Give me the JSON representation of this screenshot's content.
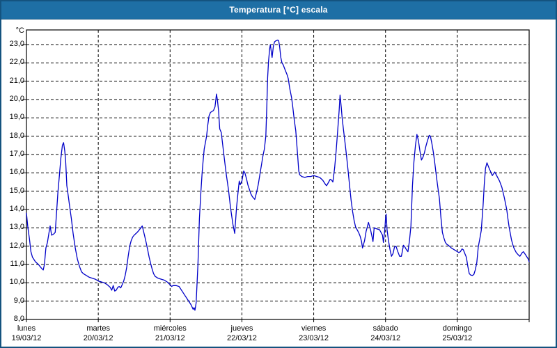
{
  "window": {
    "title": "Temperatura [°C] escala"
  },
  "colors": {
    "titlebar_bg": "#1e6fa5",
    "window_border": "#14537f",
    "line": "#0000c8",
    "grid": "#000000",
    "text": "#000000",
    "plot_bg": "#ffffff"
  },
  "chart_data": {
    "type": "line",
    "title": "Temperatura [°C] escala",
    "unit_label": "°C",
    "ylim": [
      8,
      23.8
    ],
    "y_ticks": [
      {
        "value": 23,
        "label": "23,0"
      },
      {
        "value": 22,
        "label": "22,0"
      },
      {
        "value": 21,
        "label": "21,0"
      },
      {
        "value": 20,
        "label": "20,0"
      },
      {
        "value": 19,
        "label": "19,0"
      },
      {
        "value": 18,
        "label": "18,0"
      },
      {
        "value": 17,
        "label": "17,0"
      },
      {
        "value": 16,
        "label": "16,0"
      },
      {
        "value": 15,
        "label": "15,0"
      },
      {
        "value": 14,
        "label": "14,0"
      },
      {
        "value": 13,
        "label": "13,0"
      },
      {
        "value": 12,
        "label": "12,0"
      },
      {
        "value": 11,
        "label": "11,0"
      },
      {
        "value": 10,
        "label": "10,0"
      },
      {
        "value": 9,
        "label": "9,0"
      },
      {
        "value": 8,
        "label": "8,0"
      }
    ],
    "x_days": [
      {
        "name": "lunes",
        "date": "19/03/12"
      },
      {
        "name": "martes",
        "date": "20/03/12"
      },
      {
        "name": "miércoles",
        "date": "21/03/12"
      },
      {
        "name": "jueves",
        "date": "22/03/12"
      },
      {
        "name": "viernes",
        "date": "23/03/12"
      },
      {
        "name": "sábado",
        "date": "24/03/12"
      },
      {
        "name": "domingo",
        "date": "25/03/12"
      }
    ],
    "x_hours_total": 168,
    "grid": true,
    "points": [
      [
        0,
        13.8
      ],
      [
        0.5,
        13.0
      ],
      [
        1,
        12.4
      ],
      [
        1.5,
        11.7
      ],
      [
        2,
        11.4
      ],
      [
        3,
        11.15
      ],
      [
        4,
        11.0
      ],
      [
        5,
        10.8
      ],
      [
        5.6,
        10.7
      ],
      [
        6,
        11.0
      ],
      [
        6.5,
        11.9
      ],
      [
        7,
        12.2
      ],
      [
        7.5,
        12.7
      ],
      [
        7.9,
        13.1
      ],
      [
        8.4,
        12.6
      ],
      [
        9,
        12.65
      ],
      [
        9.6,
        12.75
      ],
      [
        10,
        13.7
      ],
      [
        10.5,
        14.9
      ],
      [
        11,
        15.85
      ],
      [
        11.5,
        16.8
      ],
      [
        12,
        17.5
      ],
      [
        12.4,
        17.65
      ],
      [
        12.8,
        17.2
      ],
      [
        13.1,
        16.65
      ],
      [
        13.5,
        15.3
      ],
      [
        14,
        14.7
      ],
      [
        14.5,
        14.1
      ],
      [
        15,
        13.5
      ],
      [
        15.6,
        12.7
      ],
      [
        16.3,
        11.9
      ],
      [
        17,
        11.3
      ],
      [
        17.7,
        10.9
      ],
      [
        18.4,
        10.6
      ],
      [
        19,
        10.5
      ],
      [
        20,
        10.4
      ],
      [
        21,
        10.3
      ],
      [
        22,
        10.25
      ],
      [
        23,
        10.2
      ],
      [
        24,
        10.1
      ],
      [
        25,
        10.05
      ],
      [
        26,
        10.0
      ],
      [
        27,
        9.9
      ],
      [
        28,
        9.75
      ],
      [
        28.5,
        9.6
      ],
      [
        29,
        9.85
      ],
      [
        29.5,
        9.55
      ],
      [
        30,
        9.6
      ],
      [
        30.5,
        9.75
      ],
      [
        31,
        9.8
      ],
      [
        31.5,
        9.72
      ],
      [
        32,
        9.9
      ],
      [
        32.5,
        10.1
      ],
      [
        33,
        10.4
      ],
      [
        33.5,
        10.85
      ],
      [
        34,
        11.45
      ],
      [
        34.5,
        12.0
      ],
      [
        35,
        12.3
      ],
      [
        35.5,
        12.5
      ],
      [
        36,
        12.6
      ],
      [
        37,
        12.75
      ],
      [
        37.5,
        12.85
      ],
      [
        38,
        12.95
      ],
      [
        38.7,
        13.1
      ],
      [
        39,
        12.9
      ],
      [
        39.5,
        12.55
      ],
      [
        40,
        12.2
      ],
      [
        40.5,
        11.8
      ],
      [
        41,
        11.4
      ],
      [
        41.5,
        11.05
      ],
      [
        42,
        10.75
      ],
      [
        42.5,
        10.5
      ],
      [
        43,
        10.35
      ],
      [
        44,
        10.25
      ],
      [
        45,
        10.2
      ],
      [
        46,
        10.15
      ],
      [
        47,
        10.05
      ],
      [
        48,
        9.9
      ],
      [
        48.5,
        9.8
      ],
      [
        49,
        9.85
      ],
      [
        50,
        9.85
      ],
      [
        51,
        9.8
      ],
      [
        52,
        9.55
      ],
      [
        53,
        9.3
      ],
      [
        54,
        9.05
      ],
      [
        55,
        8.8
      ],
      [
        55.7,
        8.55
      ],
      [
        56,
        8.65
      ],
      [
        56.3,
        8.5
      ],
      [
        56.7,
        8.9
      ],
      [
        57.3,
        11.0
      ],
      [
        57.8,
        13.5
      ],
      [
        58.3,
        15.0
      ],
      [
        58.7,
        16.0
      ],
      [
        59,
        16.6
      ],
      [
        59.4,
        17.3
      ],
      [
        60.2,
        18.0
      ],
      [
        60.6,
        18.6
      ],
      [
        61,
        19.1
      ],
      [
        61.5,
        19.3
      ],
      [
        62.5,
        19.4
      ],
      [
        63,
        19.6
      ],
      [
        63.3,
        20.0
      ],
      [
        63.5,
        20.3
      ],
      [
        63.8,
        20.0
      ],
      [
        64.2,
        19.4
      ],
      [
        64.6,
        18.4
      ],
      [
        65.1,
        18.2
      ],
      [
        65.9,
        17.1
      ],
      [
        66.7,
        16.0
      ],
      [
        67.5,
        15.1
      ],
      [
        68.2,
        14.1
      ],
      [
        69,
        13.2
      ],
      [
        69.6,
        12.7
      ],
      [
        70.2,
        14.1
      ],
      [
        70.8,
        15.1
      ],
      [
        71.1,
        15.55
      ],
      [
        71.4,
        15.35
      ],
      [
        71.7,
        15.45
      ],
      [
        72,
        15.55
      ],
      [
        72.6,
        16.1
      ],
      [
        73,
        16.0
      ],
      [
        73.5,
        15.7
      ],
      [
        74,
        15.35
      ],
      [
        74.5,
        15.1
      ],
      [
        75,
        14.85
      ],
      [
        75.5,
        14.7
      ],
      [
        76.3,
        14.55
      ],
      [
        77,
        15.0
      ],
      [
        77.5,
        15.4
      ],
      [
        78,
        15.9
      ],
      [
        78.5,
        16.4
      ],
      [
        79,
        16.9
      ],
      [
        79.5,
        17.3
      ],
      [
        80,
        18.0
      ],
      [
        80.3,
        19.5
      ],
      [
        80.6,
        21.2
      ],
      [
        80.9,
        22.1
      ],
      [
        81.3,
        22.8
      ],
      [
        81.5,
        23.0
      ],
      [
        81.9,
        22.5
      ],
      [
        82.1,
        22.3
      ],
      [
        82.5,
        22.9
      ],
      [
        82.9,
        23.15
      ],
      [
        83.3,
        23.2
      ],
      [
        84,
        23.25
      ],
      [
        84.3,
        23.2
      ],
      [
        84.6,
        22.9
      ],
      [
        85,
        22.3
      ],
      [
        85.4,
        22.0
      ],
      [
        85.8,
        21.9
      ],
      [
        86.5,
        21.6
      ],
      [
        87,
        21.4
      ],
      [
        87.5,
        21.15
      ],
      [
        88,
        20.6
      ],
      [
        88.6,
        20.1
      ],
      [
        89,
        19.6
      ],
      [
        89.5,
        18.9
      ],
      [
        90,
        18.3
      ],
      [
        90.6,
        17.0
      ],
      [
        91,
        16.1
      ],
      [
        91.3,
        15.9
      ],
      [
        92,
        15.8
      ],
      [
        93,
        15.75
      ],
      [
        94,
        15.8
      ],
      [
        95,
        15.8
      ],
      [
        96,
        15.85
      ],
      [
        97,
        15.8
      ],
      [
        98,
        15.75
      ],
      [
        99,
        15.6
      ],
      [
        100,
        15.35
      ],
      [
        100.3,
        15.3
      ],
      [
        101,
        15.5
      ],
      [
        101.5,
        15.65
      ],
      [
        102,
        15.6
      ],
      [
        102.4,
        15.5
      ],
      [
        103,
        16.3
      ],
      [
        103.5,
        17.2
      ],
      [
        104,
        18.3
      ],
      [
        104.5,
        19.4
      ],
      [
        104.8,
        20.25
      ],
      [
        105.2,
        19.6
      ],
      [
        105.5,
        19.0
      ],
      [
        106,
        18.3
      ],
      [
        106.5,
        17.6
      ],
      [
        107,
        16.9
      ],
      [
        107.5,
        16.1
      ],
      [
        108,
        15.3
      ],
      [
        108.5,
        14.5
      ],
      [
        109,
        13.9
      ],
      [
        109.5,
        13.4
      ],
      [
        110,
        13.05
      ],
      [
        110.5,
        12.9
      ],
      [
        111,
        12.75
      ],
      [
        111.5,
        12.55
      ],
      [
        112,
        12.25
      ],
      [
        112.3,
        11.9
      ],
      [
        113,
        12.3
      ],
      [
        113.5,
        12.8
      ],
      [
        114,
        13.1
      ],
      [
        114.3,
        13.3
      ],
      [
        115,
        12.9
      ],
      [
        115.5,
        12.5
      ],
      [
        115.8,
        12.25
      ],
      [
        116.2,
        13.0
      ],
      [
        117,
        12.95
      ],
      [
        118,
        12.9
      ],
      [
        119,
        12.6
      ],
      [
        119.3,
        12.2
      ],
      [
        119.8,
        13.0
      ],
      [
        120,
        13.5
      ],
      [
        120.2,
        13.75
      ],
      [
        120.5,
        12.9
      ],
      [
        121,
        12.3
      ],
      [
        121.5,
        11.8
      ],
      [
        122,
        11.45
      ],
      [
        122.5,
        11.6
      ],
      [
        123,
        11.95
      ],
      [
        123.5,
        12.0
      ],
      [
        124,
        11.75
      ],
      [
        124.7,
        11.45
      ],
      [
        125.3,
        11.45
      ],
      [
        126,
        12.05
      ],
      [
        126.5,
        11.95
      ],
      [
        127,
        11.8
      ],
      [
        127.5,
        11.7
      ],
      [
        128,
        12.3
      ],
      [
        128.5,
        13.1
      ],
      [
        129,
        15.3
      ],
      [
        129.5,
        16.6
      ],
      [
        130,
        17.5
      ],
      [
        130.5,
        18.1
      ],
      [
        131,
        17.75
      ],
      [
        131.5,
        17.2
      ],
      [
        132,
        16.7
      ],
      [
        132.5,
        16.85
      ],
      [
        133,
        17.1
      ],
      [
        133.5,
        17.45
      ],
      [
        134,
        17.75
      ],
      [
        134.6,
        18.05
      ],
      [
        135,
        18.0
      ],
      [
        135.5,
        17.6
      ],
      [
        136,
        17.1
      ],
      [
        136.5,
        16.5
      ],
      [
        137,
        15.8
      ],
      [
        137.5,
        15.2
      ],
      [
        138,
        14.6
      ],
      [
        138.5,
        13.6
      ],
      [
        139,
        12.75
      ],
      [
        139.5,
        12.45
      ],
      [
        140,
        12.2
      ],
      [
        140.5,
        12.1
      ],
      [
        141,
        12.05
      ],
      [
        142,
        11.9
      ],
      [
        143,
        11.8
      ],
      [
        144,
        11.7
      ],
      [
        144.5,
        11.65
      ],
      [
        145,
        11.7
      ],
      [
        145.6,
        11.85
      ],
      [
        146,
        11.8
      ],
      [
        146.5,
        11.6
      ],
      [
        147,
        11.4
      ],
      [
        147.5,
        10.9
      ],
      [
        148,
        10.5
      ],
      [
        148.5,
        10.42
      ],
      [
        149,
        10.4
      ],
      [
        149.5,
        10.45
      ],
      [
        150,
        10.7
      ],
      [
        150.5,
        11.1
      ],
      [
        151,
        11.95
      ],
      [
        151.5,
        12.4
      ],
      [
        152,
        12.85
      ],
      [
        152.6,
        14.2
      ],
      [
        153,
        15.35
      ],
      [
        153.4,
        16.25
      ],
      [
        153.9,
        16.55
      ],
      [
        154.5,
        16.3
      ],
      [
        155.3,
        16.0
      ],
      [
        155.7,
        15.85
      ],
      [
        156.5,
        16.05
      ],
      [
        157.3,
        15.8
      ],
      [
        158.1,
        15.55
      ],
      [
        158.9,
        15.2
      ],
      [
        159.7,
        14.65
      ],
      [
        160.5,
        14.0
      ],
      [
        160.9,
        13.5
      ],
      [
        161.3,
        13.05
      ],
      [
        161.7,
        12.7
      ],
      [
        162.1,
        12.35
      ],
      [
        162.5,
        12.1
      ],
      [
        162.9,
        11.9
      ],
      [
        163.7,
        11.65
      ],
      [
        164.5,
        11.5
      ],
      [
        164.9,
        11.45
      ],
      [
        165.7,
        11.65
      ],
      [
        166.1,
        11.7
      ],
      [
        166.9,
        11.5
      ],
      [
        167.3,
        11.4
      ],
      [
        167.7,
        11.3
      ],
      [
        168,
        11.15
      ]
    ]
  }
}
